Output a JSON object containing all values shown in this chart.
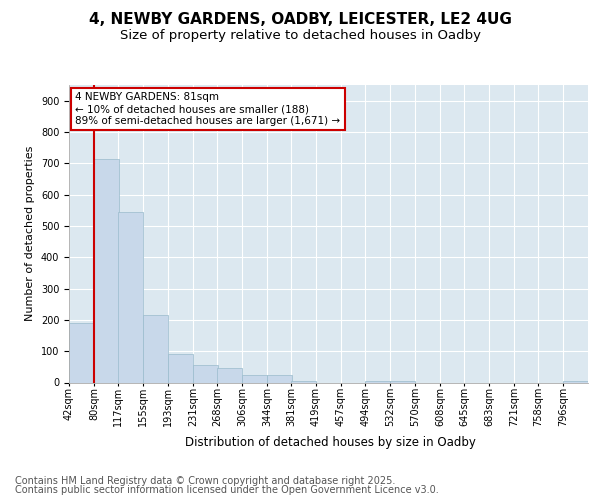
{
  "title_line1": "4, NEWBY GARDENS, OADBY, LEICESTER, LE2 4UG",
  "title_line2": "Size of property relative to detached houses in Oadby",
  "xlabel": "Distribution of detached houses by size in Oadby",
  "ylabel": "Number of detached properties",
  "bar_color": "#c8d8ea",
  "bar_edge_color": "#99bbcc",
  "background_color": "#dce8f0",
  "grid_color": "#ffffff",
  "annotation_text": "4 NEWBY GARDENS: 81sqm\n← 10% of detached houses are smaller (188)\n89% of semi-detached houses are larger (1,671) →",
  "categories": [
    "42sqm",
    "80sqm",
    "117sqm",
    "155sqm",
    "193sqm",
    "231sqm",
    "268sqm",
    "306sqm",
    "344sqm",
    "381sqm",
    "419sqm",
    "457sqm",
    "494sqm",
    "532sqm",
    "570sqm",
    "608sqm",
    "645sqm",
    "683sqm",
    "721sqm",
    "758sqm",
    "796sqm"
  ],
  "bin_edges": [
    42,
    80,
    117,
    155,
    193,
    231,
    268,
    306,
    344,
    381,
    419,
    457,
    494,
    532,
    570,
    608,
    645,
    683,
    721,
    758,
    796
  ],
  "values": [
    190,
    715,
    545,
    215,
    90,
    55,
    45,
    25,
    25,
    5,
    0,
    0,
    5,
    5,
    0,
    0,
    0,
    0,
    0,
    0,
    5
  ],
  "ylim": [
    0,
    950
  ],
  "yticks": [
    0,
    100,
    200,
    300,
    400,
    500,
    600,
    700,
    800,
    900
  ],
  "xlim_left": 42,
  "xlim_right": 834,
  "property_line_x": 80,
  "footer_line1": "Contains HM Land Registry data © Crown copyright and database right 2025.",
  "footer_line2": "Contains public sector information licensed under the Open Government Licence v3.0.",
  "title_fontsize": 11,
  "subtitle_fontsize": 9.5,
  "ylabel_fontsize": 8,
  "xlabel_fontsize": 8.5,
  "footer_fontsize": 7,
  "tick_fontsize": 7,
  "annotation_fontsize": 7.5
}
